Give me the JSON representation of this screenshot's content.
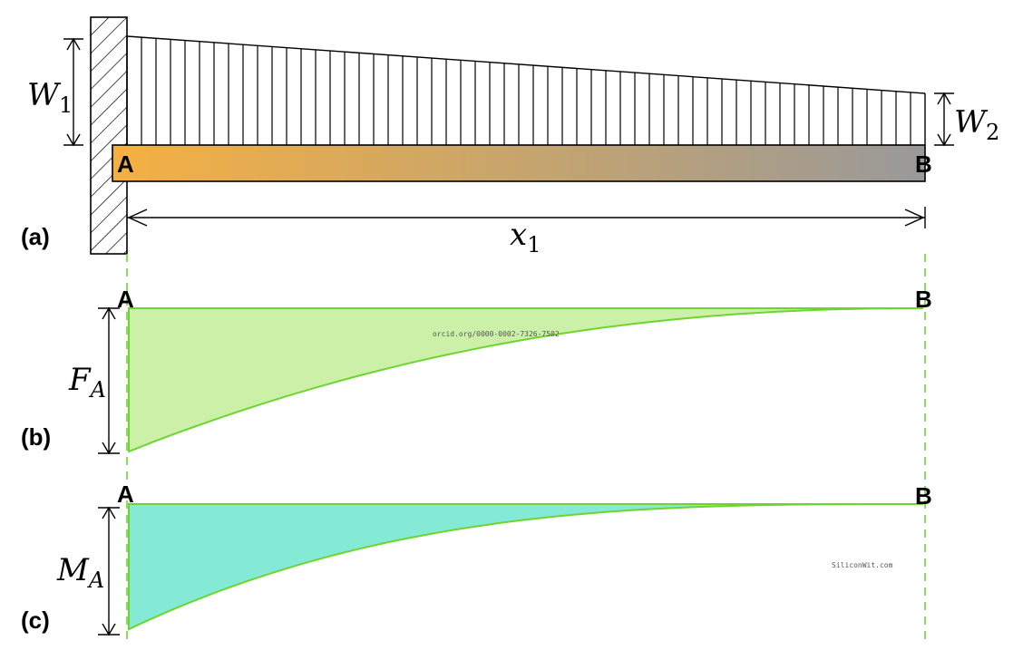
{
  "panels": {
    "a": "(a)",
    "b": "(b)",
    "c": "(c)"
  },
  "points": {
    "start": "A",
    "end": "B"
  },
  "load": {
    "w1": {
      "main": "W",
      "sub": "1"
    },
    "w2": {
      "main": "W",
      "sub": "2"
    }
  },
  "length": {
    "main": "x",
    "sub": "1"
  },
  "shear": {
    "main": "F",
    "sub": "A"
  },
  "moment": {
    "main": "M",
    "sub": "A"
  },
  "watermarks": {
    "orcid": "orcid.org/0000-0002-7326-7502",
    "site": "SiliconWit.com"
  },
  "colors": {
    "beam_start": "#f5b041",
    "beam_end": "#999999",
    "shear_fill": "#cdf0a8",
    "moment_fill": "#84ead6",
    "curve_stroke": "#6dd62e",
    "guide": "#6dd62e"
  }
}
